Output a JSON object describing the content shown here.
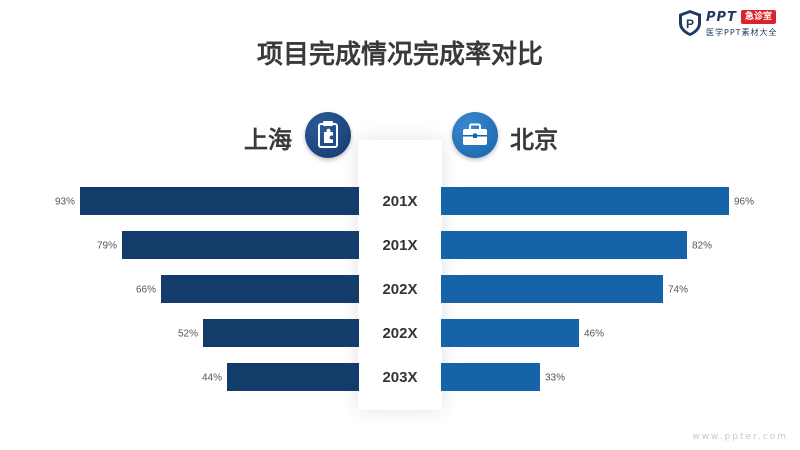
{
  "logo": {
    "brand": "PPT",
    "badge": "急诊室",
    "subtitle": "医学PPT素材大全"
  },
  "title": "项目完成情况完成率对比",
  "left_label": "上海",
  "right_label": "北京",
  "left_icon": "clipboard-puzzle-icon",
  "right_icon": "briefcase-icon",
  "colors": {
    "left": "#143c6b",
    "right": "#1663aa",
    "year_text": "#333333",
    "value_text": "#555555"
  },
  "watermark": "www.ppter.com",
  "chart_data": {
    "type": "bar",
    "categories": [
      "201X",
      "201X",
      "202X",
      "202X",
      "203X"
    ],
    "series": [
      {
        "name": "上海",
        "values": [
          93,
          79,
          66,
          52,
          44
        ]
      },
      {
        "name": "北京",
        "values": [
          96,
          82,
          74,
          46,
          33
        ]
      }
    ],
    "value_suffix": "%",
    "title": "项目完成情况完成率对比",
    "xlim": [
      0,
      100
    ],
    "grid": false
  }
}
